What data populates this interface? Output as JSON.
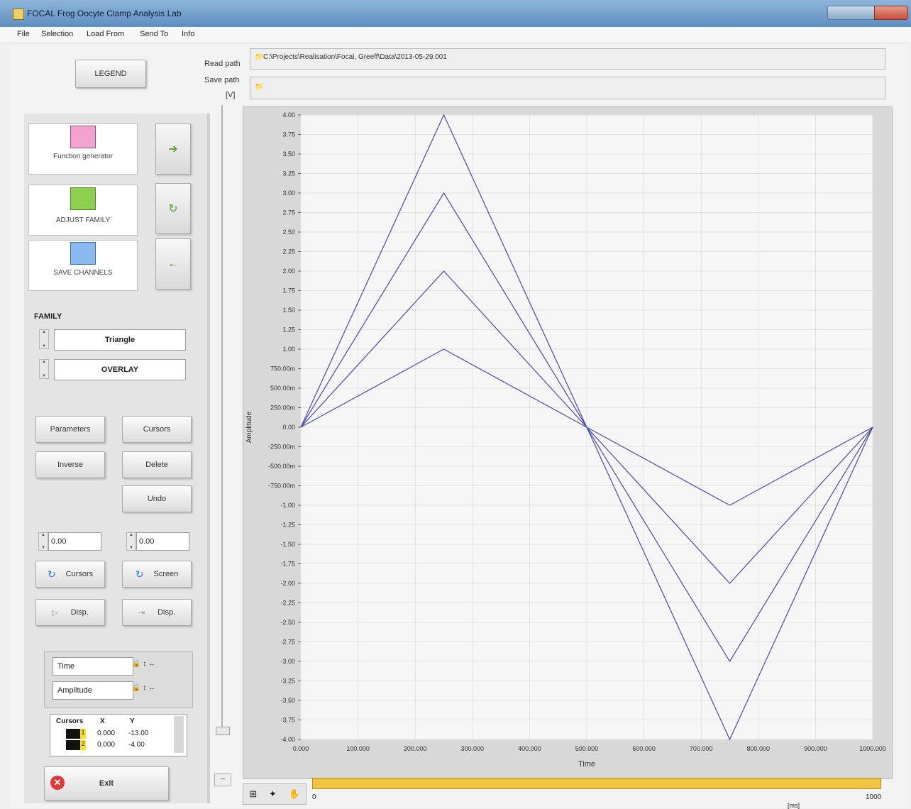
{
  "window": {
    "title": "FOCAL    Frog Oocyte Clamp Analysis Lab"
  },
  "menu": [
    "File",
    "Selection",
    "Load From",
    "Send To",
    "Info"
  ],
  "legend_button": "LEGEND",
  "paths": {
    "read_label": "Read path",
    "read_value": "C:\\Projects\\Realisation\\Focal, Greeff\\Data\\2013-05-29.001",
    "save_label": "Save path",
    "save_value": "",
    "unit_label": "[V]"
  },
  "tools": [
    {
      "label": "Function generator",
      "icon": "function-generator-icon"
    },
    {
      "label": "ADJUST FAMILY",
      "icon": "adjust-family-icon"
    },
    {
      "label": "SAVE CHANNELS",
      "icon": "save-channels-icon"
    }
  ],
  "family": {
    "heading": "FAMILY",
    "shape": "Triangle",
    "mode": "OVERLAY"
  },
  "buttons": {
    "parameters": "Parameters",
    "cursors": "Cursors",
    "inverse": "Inverse",
    "delete": "Delete",
    "undo": "Undo",
    "cursors2": "Cursors",
    "screen": "Screen",
    "disp1": "Disp.",
    "disp2": "Disp.",
    "exit": "Exit"
  },
  "numeric": {
    "left": "0.00",
    "right": "0.00"
  },
  "axis_names": {
    "x": "Time",
    "y": "Amplitude"
  },
  "cursor_table": {
    "headers": [
      "Cursors",
      "X",
      "Y"
    ],
    "rows": [
      {
        "id": "1",
        "x": "0.000",
        "y": "-13.00"
      },
      {
        "id": "2",
        "x": "0.000",
        "y": "-4.00"
      }
    ]
  },
  "scroll_labels": {
    "start": "0",
    "end": "1000",
    "unit": "[ms]"
  },
  "chart_data": {
    "type": "line",
    "xlabel": "Time",
    "ylabel": "Amplitude",
    "xlim": [
      0,
      1000
    ],
    "ylim": [
      -4,
      4
    ],
    "x_ticks": [
      "0.000",
      "100.000",
      "200.000",
      "300.000",
      "400.000",
      "500.000",
      "600.000",
      "700.000",
      "800.000",
      "900.000",
      "1000.000"
    ],
    "y_ticks": [
      "4.00",
      "3.75",
      "3.50",
      "3.25",
      "3.00",
      "2.75",
      "2.50",
      "2.25",
      "2.00",
      "1.75",
      "1.50",
      "1.25",
      "1.00",
      "750.00m",
      "500.00m",
      "250.00m",
      "0.00",
      "-250.00m",
      "-500.00m",
      "-750.00m",
      "-1.00",
      "-1.25",
      "-1.50",
      "-1.75",
      "-2.00",
      "-2.25",
      "-2.50",
      "-2.75",
      "-3.00",
      "-3.25",
      "-3.50",
      "-3.75",
      "-4.00"
    ],
    "x": [
      0,
      250,
      500,
      750,
      1000
    ],
    "series": [
      {
        "values": [
          0,
          1,
          0,
          -1,
          0
        ]
      },
      {
        "values": [
          0,
          2,
          0,
          -2,
          0
        ]
      },
      {
        "values": [
          0,
          3,
          0,
          -3,
          0
        ]
      },
      {
        "values": [
          0,
          4,
          0,
          -4,
          0
        ]
      }
    ],
    "grid": true,
    "line_color": "#4a4aa8"
  }
}
